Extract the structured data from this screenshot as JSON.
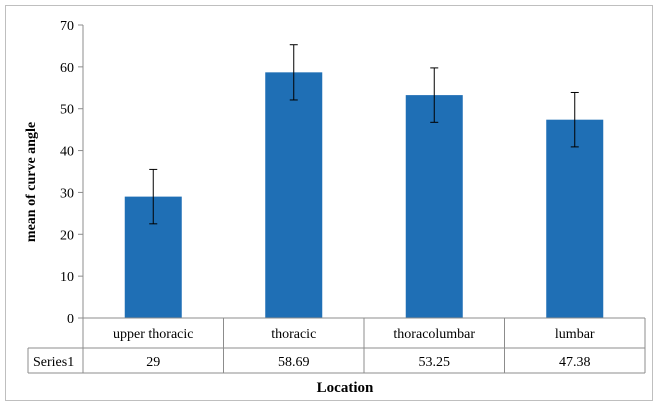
{
  "chart_data": {
    "type": "bar",
    "title": "",
    "xlabel": "Location",
    "ylabel": "mean of curve angle",
    "ylim": [
      0,
      70
    ],
    "yticks": [
      0,
      10,
      20,
      30,
      40,
      50,
      60,
      70
    ],
    "grid": false,
    "legend": "none",
    "categories": [
      "upper thoracic",
      "thoracic",
      "thoracolumbar",
      "lumbar"
    ],
    "series": [
      {
        "name": "Series1",
        "values": [
          29,
          58.69,
          53.25,
          47.38
        ],
        "error": [
          6.5,
          6.6,
          6.5,
          6.5
        ],
        "color": "#1f6fb5"
      }
    ],
    "data_table": {
      "row_label": "Series1",
      "values": [
        "29",
        "58.69",
        "53.25",
        "47.38"
      ]
    }
  }
}
